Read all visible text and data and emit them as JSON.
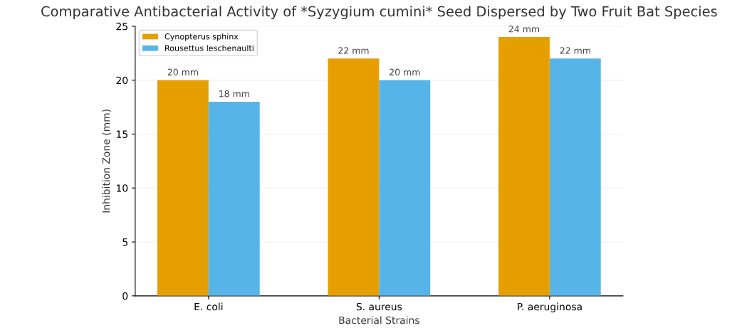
{
  "chart_data": {
    "type": "bar",
    "title": "Comparative Antibacterial Activity of *Syzygium cumini* Seed Dispersed by Two Fruit Bat Species",
    "xlabel": "Bacterial Strains",
    "ylabel": "Inhibition Zone (mm)",
    "categories": [
      "E. coli",
      "S. aureus",
      "P. aeruginosa"
    ],
    "series": [
      {
        "name": "Cynopterus sphinx",
        "color": "#e69f00",
        "values": [
          20,
          22,
          24
        ],
        "value_labels": [
          "20 mm",
          "22 mm",
          "24 mm"
        ]
      },
      {
        "name": "Rousettus leschenaulti",
        "color": "#56b4e9",
        "values": [
          18,
          20,
          22
        ],
        "value_labels": [
          "18 mm",
          "20 mm",
          "22 mm"
        ]
      }
    ],
    "ylim": [
      0,
      25
    ],
    "yticks": [
      0,
      5,
      10,
      15,
      20,
      25
    ],
    "grid": "y",
    "legend": "top left"
  }
}
